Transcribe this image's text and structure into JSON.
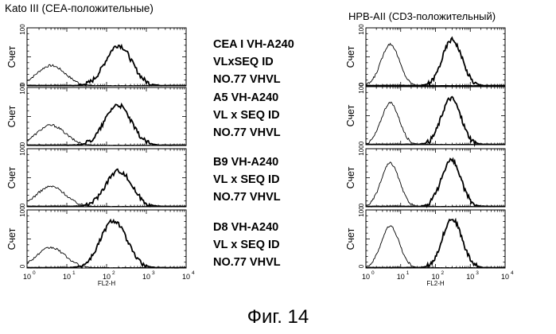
{
  "figure_caption": "Фиг. 14",
  "columns": {
    "left_title": "Kato III (CEA-положительные)",
    "right_title": "HPB-AII (CD3-положительный)"
  },
  "samples": [
    {
      "line1": "CEA I VH-A240",
      "line2": "VLxSEQ ID",
      "line3": "NO.77 VHVL"
    },
    {
      "line1": "A5 VH-A240",
      "line2": "VL x SEQ ID",
      "line3": "NO.77 VHVL"
    },
    {
      "line1": "B9 VH-A240",
      "line2": "VL x SEQ ID",
      "line3": "NO.77 VHVL"
    },
    {
      "line1": "D8 VH-A240",
      "line2": "VL x SEQ ID",
      "line3": "NO.77 VHVL"
    }
  ],
  "chart_data": {
    "type": "histogram",
    "y_axis_label": "Счет",
    "x_axis_label": "FL2-H",
    "x_scale": "log",
    "x_range": [
      1,
      10000
    ],
    "y_range": [
      0,
      100
    ],
    "y_tick_labels": [
      "0",
      "100"
    ],
    "x_tick_labels": [
      {
        "base": "10",
        "exp": "0"
      },
      {
        "base": "10",
        "exp": "1"
      },
      {
        "base": "10",
        "exp": "2"
      },
      {
        "base": "10",
        "exp": "3"
      },
      {
        "base": "10",
        "exp": "4"
      }
    ],
    "panels": [
      {
        "column": "left",
        "row": 1,
        "negative_peak_x": 4.0,
        "negative_peak_y": 35,
        "positive_peak_x": 200,
        "positive_peak_y": 70
      },
      {
        "column": "left",
        "row": 2,
        "negative_peak_x": 4.0,
        "negative_peak_y": 35,
        "positive_peak_x": 190,
        "positive_peak_y": 70
      },
      {
        "column": "left",
        "row": 3,
        "negative_peak_x": 4.0,
        "negative_peak_y": 35,
        "positive_peak_x": 200,
        "positive_peak_y": 62
      },
      {
        "column": "left",
        "row": 4,
        "negative_peak_x": 4.0,
        "negative_peak_y": 35,
        "positive_peak_x": 150,
        "positive_peak_y": 82
      },
      {
        "column": "right",
        "row": 1,
        "negative_peak_x": 5.0,
        "negative_peak_y": 72,
        "positive_peak_x": 300,
        "positive_peak_y": 80
      },
      {
        "column": "right",
        "row": 2,
        "negative_peak_x": 5.0,
        "negative_peak_y": 72,
        "positive_peak_x": 280,
        "positive_peak_y": 80
      },
      {
        "column": "right",
        "row": 3,
        "negative_peak_x": 5.0,
        "negative_peak_y": 75,
        "positive_peak_x": 280,
        "positive_peak_y": 80
      },
      {
        "column": "right",
        "row": 4,
        "negative_peak_x": 5.0,
        "negative_peak_y": 72,
        "positive_peak_x": 300,
        "positive_peak_y": 85
      }
    ]
  }
}
